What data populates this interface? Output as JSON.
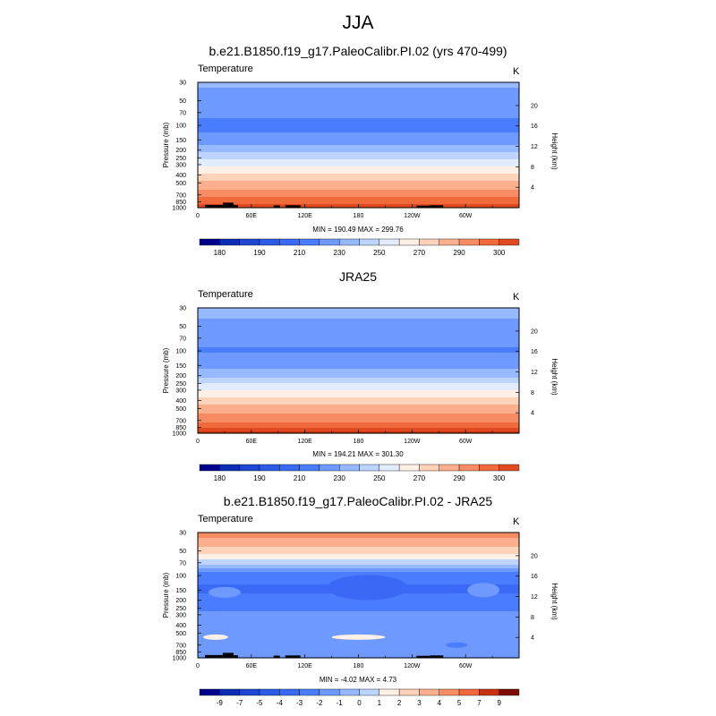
{
  "figure": {
    "title": "JJA"
  },
  "chart_data": [
    {
      "type": "heatmap",
      "title": "b.e21.B1850.f19_g17.PaleoCalibr.PI.02 (yrs 470-499)",
      "field_label": "Temperature",
      "units": "K",
      "ylabel": "Pressure (mb)",
      "y2label": "Height (km)",
      "x_ticks": [
        "0",
        "60E",
        "120E",
        "180",
        "120W",
        "60W"
      ],
      "x_tick_values": [
        0,
        60,
        120,
        180,
        240,
        300
      ],
      "xlim": [
        0,
        360
      ],
      "pressure_ticks": [
        30,
        50,
        70,
        100,
        150,
        200,
        250,
        300,
        400,
        500,
        700,
        850,
        1000
      ],
      "ylim": [
        30,
        1000
      ],
      "height_ticks": [
        4,
        8,
        12,
        16,
        20
      ],
      "stats": "MIN = 190.49  MAX = 299.76",
      "colorbar_labels": [
        "180",
        "190",
        "210",
        "230",
        "250",
        "270",
        "290",
        "300"
      ],
      "profile": {
        "pressure": [
          30,
          50,
          70,
          100,
          150,
          200,
          250,
          300,
          400,
          500,
          700,
          850,
          1000
        ],
        "value": [
          212,
          205,
          202,
          197,
          203,
          216,
          228,
          238,
          252,
          262,
          276,
          286,
          296
        ]
      },
      "topography": true
    },
    {
      "type": "heatmap",
      "title": "JRA25",
      "field_label": "Temperature",
      "units": "K",
      "ylabel": "Pressure (mb)",
      "y2label": "Height (km)",
      "x_ticks": [
        "0",
        "60E",
        "120E",
        "180",
        "120W",
        "60W"
      ],
      "x_tick_values": [
        0,
        60,
        120,
        180,
        240,
        300
      ],
      "xlim": [
        0,
        360
      ],
      "pressure_ticks": [
        30,
        50,
        70,
        100,
        150,
        200,
        250,
        300,
        400,
        500,
        700,
        850,
        1000
      ],
      "ylim": [
        30,
        1000
      ],
      "height_ticks": [
        4,
        8,
        12,
        16,
        20
      ],
      "stats": "MIN = 194.21  MAX = 301.30",
      "colorbar_labels": [
        "180",
        "190",
        "210",
        "230",
        "250",
        "270",
        "290",
        "300"
      ],
      "profile": {
        "pressure": [
          30,
          50,
          70,
          100,
          150,
          200,
          250,
          300,
          400,
          500,
          700,
          850,
          1000
        ],
        "value": [
          214,
          207,
          203,
          199,
          205,
          218,
          230,
          240,
          254,
          264,
          278,
          288,
          298
        ]
      },
      "topography": false
    },
    {
      "type": "heatmap",
      "title": "b.e21.B1850.f19_g17.PaleoCalibr.PI.02 - JRA25",
      "field_label": "Temperature",
      "units": "K",
      "ylabel": "Pressure (mb)",
      "y2label": "Height (km)",
      "x_ticks": [
        "0",
        "60E",
        "120E",
        "180",
        "120W",
        "60W"
      ],
      "x_tick_values": [
        0,
        60,
        120,
        180,
        240,
        300
      ],
      "xlim": [
        0,
        360
      ],
      "pressure_ticks": [
        30,
        50,
        70,
        100,
        150,
        200,
        250,
        300,
        400,
        500,
        700,
        850,
        1000
      ],
      "ylim": [
        30,
        1000
      ],
      "height_ticks": [
        4,
        8,
        12,
        16,
        20
      ],
      "stats": "MIN = -4.02  MAX =  4.73",
      "colorbar_labels": [
        "-9",
        "-7",
        "-5",
        "-4",
        "-3",
        "-2",
        "-1",
        "0",
        "1",
        "2",
        "3",
        "4",
        "5",
        "7",
        "9"
      ],
      "profile": {
        "pressure": [
          30,
          40,
          50,
          60,
          70,
          85,
          100,
          150,
          200,
          250,
          300,
          400,
          500,
          700,
          850,
          1000
        ],
        "value": [
          4.5,
          3.5,
          2.5,
          1.5,
          0.5,
          -1.5,
          -2.6,
          -3.2,
          -2.6,
          -2.2,
          -1.7,
          -1.4,
          -1.1,
          -1.4,
          -1.0,
          -1.5
        ]
      },
      "topography": true
    }
  ],
  "palette": [
    "#00008c",
    "#0a2db4",
    "#1e46d2",
    "#2d5ae6",
    "#3a6af5",
    "#4a7cff",
    "#6e9aff",
    "#96b9ff",
    "#bdd4ff",
    "#e2ecff",
    "#fff0e6",
    "#ffd2ba",
    "#fcaf8c",
    "#f78c64",
    "#f06a3c",
    "#e04a1e",
    "#c8320f",
    "#a81e05",
    "#7a0d00"
  ],
  "topo_color": "#000000"
}
